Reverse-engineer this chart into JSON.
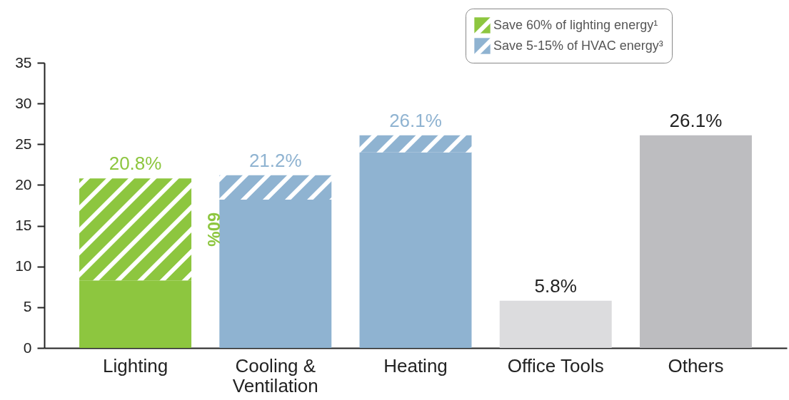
{
  "chart_data": {
    "type": "bar",
    "stacked": true,
    "categories": [
      "Lighting",
      "Cooling & Ventilation",
      "Heating",
      "Office Tools",
      "Others"
    ],
    "series": [
      {
        "colors": [
          "#8dc63f",
          "#8fb3d1",
          "#8fb3d1",
          "#dcdcde",
          "#bdbdc0"
        ],
        "values": [
          8.3,
          18.2,
          24.0,
          5.8,
          26.1
        ]
      },
      {
        "name": "Save 60% of lighting energy¹",
        "color": "#8dc63f",
        "values": [
          12.5,
          null,
          null,
          null,
          null
        ]
      },
      {
        "name": "Save 5-15% of HVAC energy³",
        "color": "#8fb3d1",
        "values": [
          null,
          3.0,
          2.1,
          null,
          null
        ]
      }
    ],
    "totals": [
      "20.8%",
      "21.2%",
      "26.1%",
      "5.8%",
      "26.1%"
    ],
    "annotations": [
      "60%"
    ],
    "ylim": [
      0,
      35
    ],
    "yticks": [
      0,
      5,
      10,
      15,
      20,
      25,
      30,
      35
    ],
    "grid": false,
    "legend": "top right"
  }
}
